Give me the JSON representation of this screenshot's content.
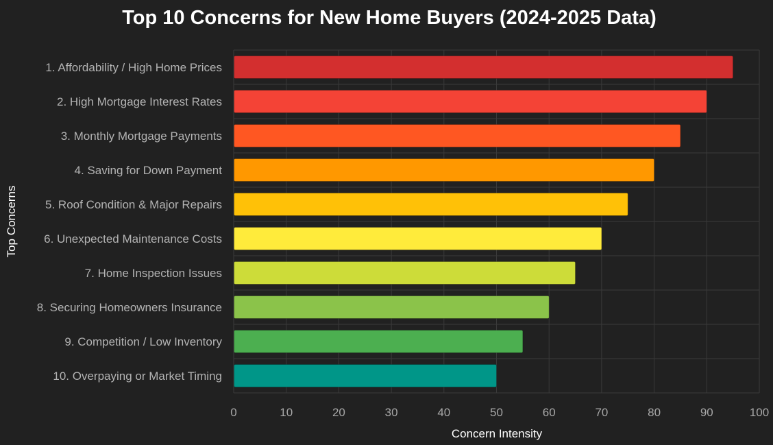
{
  "chart_data": {
    "type": "bar",
    "orientation": "horizontal",
    "title": "Top 10 Concerns for New Home Buyers (2024-2025 Data)",
    "xlabel": "Concern Intensity",
    "ylabel": "Top Concerns",
    "xlim": [
      0,
      100
    ],
    "x_ticks": [
      "0",
      "10",
      "20",
      "30",
      "40",
      "50",
      "60",
      "70",
      "80",
      "90",
      "100"
    ],
    "grid": true,
    "categories": [
      "1. Affordability / High Home Prices",
      "2. High Mortgage Interest Rates",
      "3. Monthly Mortgage Payments",
      "4. Saving for Down Payment",
      "5. Roof Condition & Major Repairs",
      "6. Unexpected Maintenance Costs",
      "7. Home Inspection Issues",
      "8. Securing Homeowners Insurance",
      "9. Competition / Low Inventory",
      "10. Overpaying or Market Timing"
    ],
    "values": [
      95,
      90,
      85,
      80,
      75,
      70,
      65,
      60,
      55,
      50
    ],
    "colors": [
      "#d32f2f",
      "#f44336",
      "#ff5722",
      "#ff9800",
      "#ffc107",
      "#ffeb3b",
      "#cddc39",
      "#8bc34a",
      "#4caf50",
      "#009688"
    ],
    "background_color": "#212121",
    "grid_color": "#3a3a3a"
  }
}
